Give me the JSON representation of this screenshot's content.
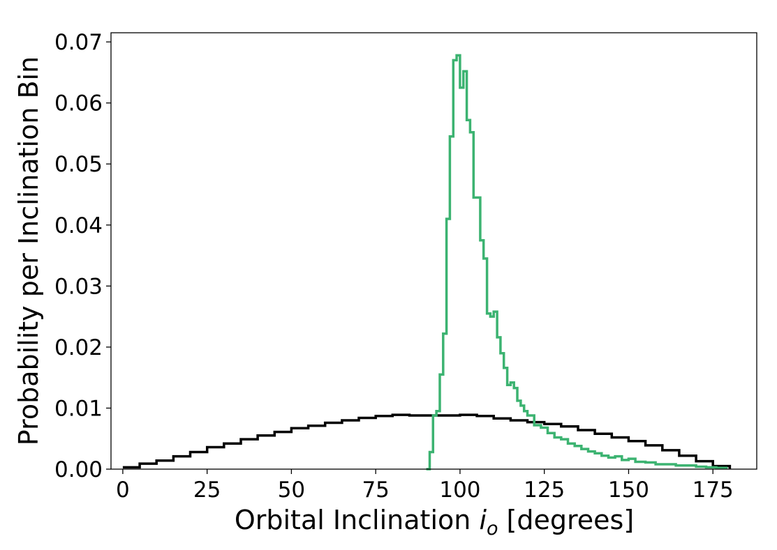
{
  "chart_data": {
    "type": "line",
    "drawstyle": "steps",
    "xlabel": "Orbital Inclination",
    "xlabel_symbol": "i",
    "xlabel_subscript": "o",
    "xlabel_unit": "[degrees]",
    "ylabel": "Probability per Inclination Bin",
    "xlim": [
      -3.5,
      188
    ],
    "ylim": [
      0,
      0.0715
    ],
    "xticks": [
      0,
      25,
      50,
      75,
      100,
      125,
      150,
      175
    ],
    "xtick_labels": [
      "0",
      "25",
      "50",
      "75",
      "100",
      "125",
      "150",
      "175"
    ],
    "yticks": [
      0,
      0.01,
      0.02,
      0.03,
      0.04,
      0.05,
      0.06,
      0.07
    ],
    "ytick_labels": [
      "0.00",
      "0.01",
      "0.02",
      "0.03",
      "0.04",
      "0.05",
      "0.06",
      "0.07"
    ],
    "grid": false,
    "legend": false,
    "series": [
      {
        "color": "#000000",
        "x": [
          0,
          5,
          10,
          15,
          20,
          25,
          30,
          35,
          40,
          45,
          50,
          55,
          60,
          65,
          70,
          75,
          80,
          85,
          90,
          95,
          100,
          105,
          110,
          115,
          120,
          125,
          130,
          135,
          140,
          145,
          150,
          155,
          160,
          165,
          170,
          175,
          180
        ],
        "y": [
          0.0003,
          0.0009,
          0.0014,
          0.0021,
          0.0028,
          0.0036,
          0.0042,
          0.0049,
          0.0055,
          0.0061,
          0.0067,
          0.0071,
          0.0076,
          0.008,
          0.0084,
          0.0087,
          0.0089,
          0.0088,
          0.0088,
          0.0088,
          0.0089,
          0.0087,
          0.0083,
          0.008,
          0.0077,
          0.0074,
          0.007,
          0.0064,
          0.0058,
          0.0052,
          0.0046,
          0.0039,
          0.0031,
          0.0022,
          0.0013,
          0.0005,
          0.0
        ]
      },
      {
        "color": "#3cb371",
        "x": [
          90,
          91,
          92,
          93,
          94,
          95,
          96,
          97,
          98,
          99,
          100,
          101,
          102,
          103,
          104,
          105,
          106,
          107,
          108,
          109,
          110,
          111,
          112,
          113,
          114,
          115,
          116,
          117,
          118,
          119,
          120,
          122,
          124,
          126,
          128,
          130,
          132,
          134,
          136,
          138,
          140,
          142,
          144,
          146,
          148,
          150,
          152,
          155,
          158,
          161,
          164,
          167,
          170,
          173,
          176,
          179
        ],
        "y": [
          0.0,
          0.0028,
          0.0088,
          0.0095,
          0.0155,
          0.0222,
          0.041,
          0.0545,
          0.067,
          0.0678,
          0.0625,
          0.0652,
          0.0572,
          0.0552,
          0.0445,
          0.0445,
          0.0375,
          0.0345,
          0.0255,
          0.025,
          0.0258,
          0.0216,
          0.019,
          0.0166,
          0.0138,
          0.0142,
          0.0133,
          0.0112,
          0.0104,
          0.0095,
          0.0088,
          0.0072,
          0.0068,
          0.0059,
          0.0052,
          0.0049,
          0.0042,
          0.0038,
          0.0033,
          0.0029,
          0.0026,
          0.0022,
          0.0019,
          0.0021,
          0.0015,
          0.0017,
          0.0012,
          0.0011,
          0.0008,
          0.0008,
          0.0006,
          0.0006,
          0.0004,
          0.0003,
          0.0002,
          0.0
        ]
      }
    ]
  }
}
